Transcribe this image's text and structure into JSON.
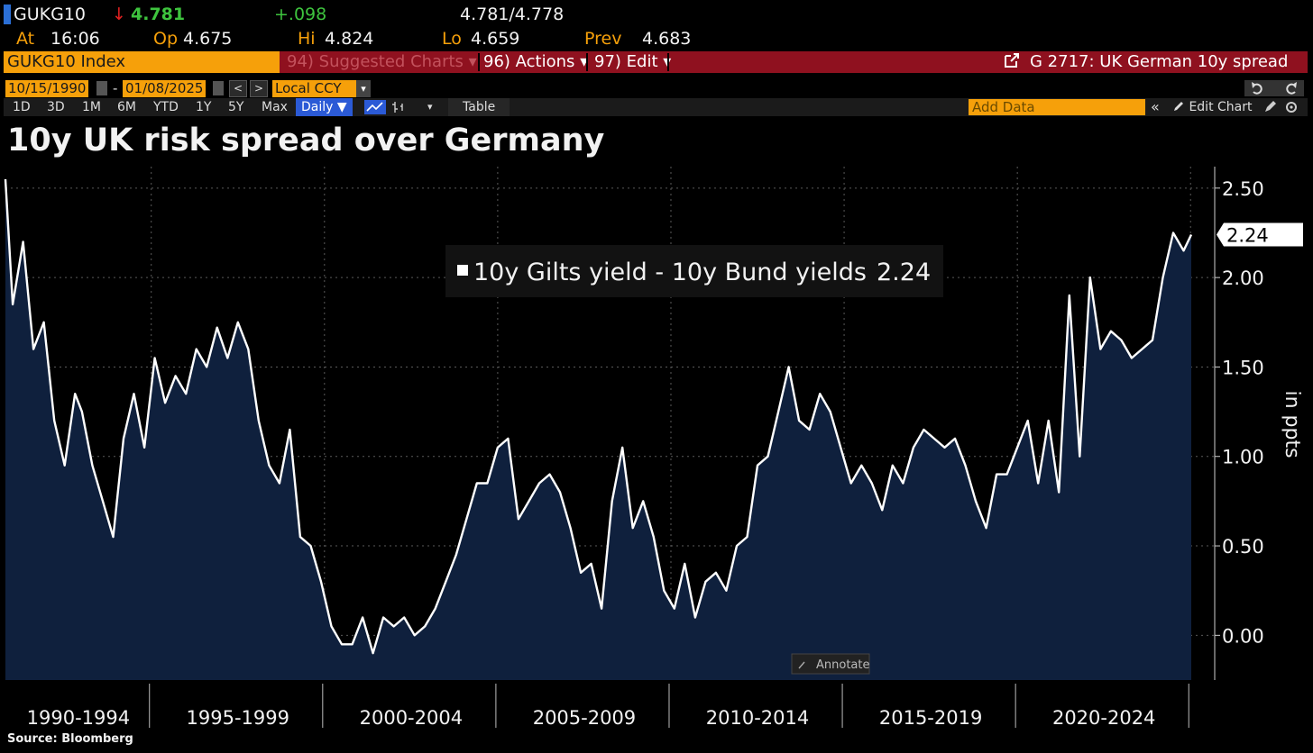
{
  "header": {
    "ticker": "GUKG10",
    "down_arrow": "↓",
    "last": "4.781",
    "change": "+.098",
    "bid_ask": "4.781/4.778",
    "at_label": "At",
    "time": "16:06",
    "open_label": "Op",
    "open": "4.675",
    "high_label": "Hi",
    "high": "4.824",
    "low_label": "Lo",
    "low": "4.659",
    "prev_label": "Prev",
    "prev": "4.683"
  },
  "command_bar": {
    "index": "GUKG10 Index",
    "suggested": "94) Suggested Charts",
    "actions": "96) Actions",
    "edit": "97) Edit",
    "chart_id": "G 2717: UK German 10y spread",
    "caret": "▾"
  },
  "date_row": {
    "start": "10/15/1990",
    "dash": "-",
    "end": "01/08/2025",
    "prev_btn": "<",
    "next_btn": ">",
    "currency": "Local CCY"
  },
  "period_row": {
    "periods": [
      "1D",
      "3D",
      "1M",
      "6M",
      "YTD",
      "1Y",
      "5Y",
      "Max"
    ],
    "frequency": "Daily ▼",
    "table": "Table",
    "add_data_placeholder": "Add Data",
    "collapse": "«",
    "edit_chart": "Edit Chart"
  },
  "title": "10y UK risk spread over Germany",
  "source": "Source: Bloomberg",
  "annotate": "Annotate",
  "colors": {
    "area_fill": "#0f203d",
    "line": "#ffffff",
    "bloomberg_orange": "#f6a00a",
    "command_red": "#8f111f"
  },
  "chart_data": {
    "type": "area",
    "ylabel": "in ppts",
    "ylim": [
      -0.25,
      2.62
    ],
    "yticks": [
      0.0,
      0.5,
      1.0,
      1.5,
      2.0,
      2.5
    ],
    "ytick_labels": [
      "0.00",
      "0.50",
      "1.00",
      "1.50",
      "2.00",
      "2.50"
    ],
    "x_categories": [
      "1990-1994",
      "1995-1999",
      "2000-2004",
      "2005-2009",
      "2010-2014",
      "2015-2019",
      "2020-2024"
    ],
    "grid": true,
    "legend": "top-center",
    "last_value": 2.24,
    "last_value_label": "2.24",
    "series": [
      {
        "name": "10y Gilts yield - 10y Bund yields",
        "legend_value": "2.24",
        "x": [
          1990.79,
          1991.0,
          1991.3,
          1991.6,
          1991.9,
          1992.2,
          1992.5,
          1992.8,
          1993.0,
          1993.3,
          1993.6,
          1993.9,
          1994.2,
          1994.5,
          1994.8,
          1995.1,
          1995.4,
          1995.7,
          1996.0,
          1996.3,
          1996.6,
          1996.9,
          1997.2,
          1997.5,
          1997.8,
          1998.1,
          1998.4,
          1998.7,
          1999.0,
          1999.3,
          1999.6,
          1999.9,
          2000.2,
          2000.5,
          2000.8,
          2001.1,
          2001.4,
          2001.7,
          2002.0,
          2002.3,
          2002.6,
          2002.9,
          2003.2,
          2003.5,
          2003.8,
          2004.1,
          2004.4,
          2004.7,
          2005.0,
          2005.3,
          2005.6,
          2005.9,
          2006.2,
          2006.5,
          2006.8,
          2007.1,
          2007.4,
          2007.7,
          2008.0,
          2008.3,
          2008.6,
          2008.9,
          2009.2,
          2009.5,
          2009.8,
          2010.1,
          2010.4,
          2010.7,
          2011.0,
          2011.3,
          2011.6,
          2011.9,
          2012.2,
          2012.5,
          2012.8,
          2013.1,
          2013.4,
          2013.7,
          2014.0,
          2014.3,
          2014.6,
          2014.9,
          2015.2,
          2015.5,
          2015.8,
          2016.1,
          2016.4,
          2016.7,
          2017.0,
          2017.3,
          2017.6,
          2017.9,
          2018.2,
          2018.5,
          2018.8,
          2019.1,
          2019.4,
          2019.7,
          2020.0,
          2020.3,
          2020.6,
          2020.9,
          2021.2,
          2021.5,
          2021.8,
          2022.1,
          2022.4,
          2022.7,
          2023.0,
          2023.3,
          2023.6,
          2023.9,
          2024.2,
          2024.5,
          2024.8,
          2025.02
        ],
        "values": [
          2.55,
          1.85,
          2.2,
          1.6,
          1.75,
          1.2,
          0.95,
          1.35,
          1.25,
          0.95,
          0.75,
          0.55,
          1.1,
          1.35,
          1.05,
          1.55,
          1.3,
          1.45,
          1.35,
          1.6,
          1.5,
          1.72,
          1.55,
          1.75,
          1.6,
          1.2,
          0.95,
          0.85,
          1.15,
          0.55,
          0.5,
          0.3,
          0.05,
          -0.05,
          -0.05,
          0.1,
          -0.1,
          0.1,
          0.05,
          0.1,
          0.0,
          0.05,
          0.15,
          0.3,
          0.45,
          0.65,
          0.85,
          0.85,
          1.05,
          1.1,
          0.65,
          0.75,
          0.85,
          0.9,
          0.8,
          0.6,
          0.35,
          0.4,
          0.15,
          0.75,
          1.05,
          0.6,
          0.75,
          0.55,
          0.25,
          0.15,
          0.4,
          0.1,
          0.3,
          0.35,
          0.25,
          0.5,
          0.55,
          0.95,
          1.0,
          1.25,
          1.5,
          1.2,
          1.15,
          1.35,
          1.25,
          1.05,
          0.85,
          0.95,
          0.85,
          0.7,
          0.95,
          0.85,
          1.05,
          1.15,
          1.1,
          1.05,
          1.1,
          0.95,
          0.75,
          0.6,
          0.9,
          0.9,
          1.05,
          1.2,
          0.85,
          1.2,
          0.8,
          1.9,
          1.0,
          2.0,
          1.6,
          1.7,
          1.65,
          1.55,
          1.6,
          1.65,
          2.0,
          2.25,
          2.15,
          2.24
        ]
      }
    ]
  }
}
